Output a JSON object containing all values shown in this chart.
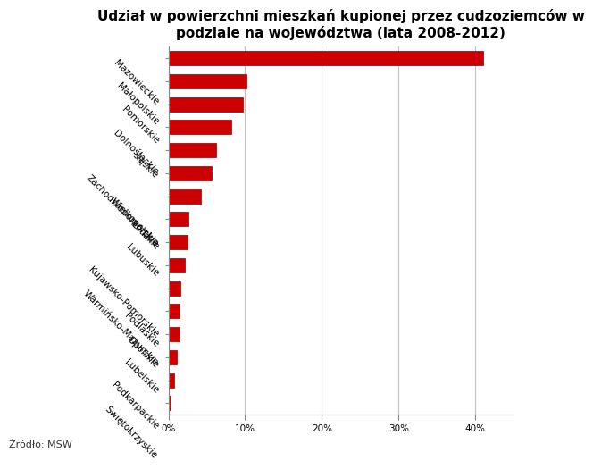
{
  "title": "Udział w powierzchni mieszkań kupionej przez cudzoziemców w\npodziale na województwa (lata 2008-2012)",
  "source": "Źródło: MSW",
  "categories": [
    "Mazowieckie",
    "Małopolskie",
    "Pomorskie",
    "Dolnośląskie",
    "śląskie",
    "Zachodniopomorskie",
    "Wielkopolskie",
    "Łódzkie",
    "Lubuskie",
    "Kujawsko-Pomorskie",
    "Warmińsko-Mazurskie",
    "Podlaskie",
    "Opolskie",
    "Lubelskie",
    "Podkarpackie",
    "Świętokrzyskie"
  ],
  "values": [
    41.0,
    10.2,
    9.7,
    8.2,
    6.2,
    5.6,
    4.2,
    2.6,
    2.5,
    2.1,
    1.6,
    1.5,
    1.4,
    1.1,
    0.8,
    0.3
  ],
  "bar_color": "#cc0000",
  "bar_edge_color": "#8b0000",
  "background_color": "#ffffff",
  "xlim": [
    0,
    45
  ],
  "xticks": [
    0,
    10,
    20,
    30,
    40
  ],
  "xticklabels": [
    "0%",
    "10%",
    "20%",
    "30%",
    "40%"
  ],
  "title_fontsize": 11,
  "tick_fontsize": 7.5,
  "source_fontsize": 8,
  "grid_color": "#c0c0c0",
  "label_rotation": -45
}
